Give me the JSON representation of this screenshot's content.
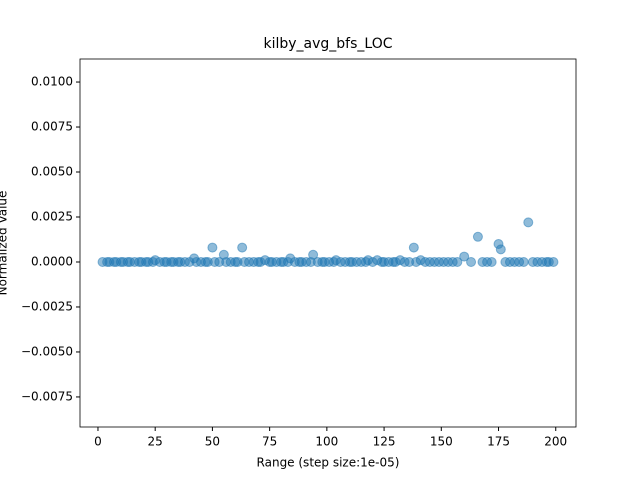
{
  "chart_data": {
    "type": "scatter",
    "title": "kilby_avg_bfs_LOC",
    "x_label": "Range (step size:1e-05)",
    "y_label": "Normalized Value",
    "color": "#1f77b4",
    "x": [
      2,
      4,
      5,
      7,
      8,
      10,
      11,
      13,
      14,
      16,
      18,
      19,
      21,
      22,
      24,
      25,
      27,
      29,
      30,
      32,
      33,
      35,
      36,
      38,
      40,
      42,
      43,
      45,
      47,
      48,
      50,
      51,
      53,
      55,
      56,
      58,
      60,
      61,
      63,
      64,
      66,
      68,
      70,
      71,
      73,
      75,
      76,
      78,
      80,
      81,
      83,
      84,
      86,
      88,
      89,
      91,
      93,
      94,
      96,
      98,
      99,
      101,
      103,
      104,
      106,
      108,
      110,
      111,
      113,
      115,
      117,
      118,
      120,
      122,
      124,
      125,
      127,
      129,
      130,
      132,
      134,
      136,
      138,
      139,
      141,
      143,
      145,
      147,
      149,
      151,
      153,
      155,
      157,
      160,
      163,
      166,
      168,
      170,
      172,
      175,
      176,
      178,
      180,
      182,
      184,
      186,
      188,
      190,
      192,
      194,
      196,
      197,
      199
    ],
    "values": [
      0,
      0,
      0,
      0,
      0,
      0,
      0,
      0,
      0,
      0,
      0,
      0,
      0,
      0,
      0,
      0.0001,
      0,
      0,
      0,
      0,
      0,
      0,
      0,
      0,
      0,
      0.0002,
      0,
      0,
      0,
      0,
      0.0008,
      0,
      0,
      0.0004,
      0,
      0,
      0,
      0,
      0.0008,
      0,
      0,
      0,
      0,
      0,
      0.0001,
      0,
      0,
      0,
      0,
      0,
      0,
      0.0002,
      0,
      0,
      0,
      0,
      0,
      0.0004,
      0,
      0,
      0,
      0,
      0,
      0.0001,
      0,
      0,
      0,
      0,
      0,
      0,
      0,
      0.0001,
      0,
      0.0001,
      0,
      0,
      0,
      0,
      0,
      0.0001,
      0,
      0,
      0.0008,
      0,
      0.0001,
      0,
      0,
      0,
      0,
      0,
      0,
      0,
      0,
      0.0003,
      0,
      0.0014,
      0,
      0,
      0,
      0.001,
      0.0007,
      0,
      0,
      0,
      0,
      0,
      0.0022,
      0,
      0,
      0,
      0,
      0,
      0
    ],
    "xlim": [
      -7.85,
      208.85
    ],
    "xticks": [
      0,
      25,
      50,
      75,
      100,
      125,
      150,
      175,
      200
    ],
    "ylim": [
      -0.00917,
      0.01128
    ],
    "yticks": [
      {
        "value": -0.0075,
        "label": "−0.0075"
      },
      {
        "value": -0.005,
        "label": "−0.0050"
      },
      {
        "value": -0.0025,
        "label": "−0.0025"
      },
      {
        "value": 0,
        "label": "0.0000"
      },
      {
        "value": 0.0025,
        "label": "0.0025"
      },
      {
        "value": 0.005,
        "label": "0.0050"
      },
      {
        "value": 0.0075,
        "label": "0.0075"
      },
      {
        "value": 0.01,
        "label": "0.0100"
      }
    ]
  }
}
